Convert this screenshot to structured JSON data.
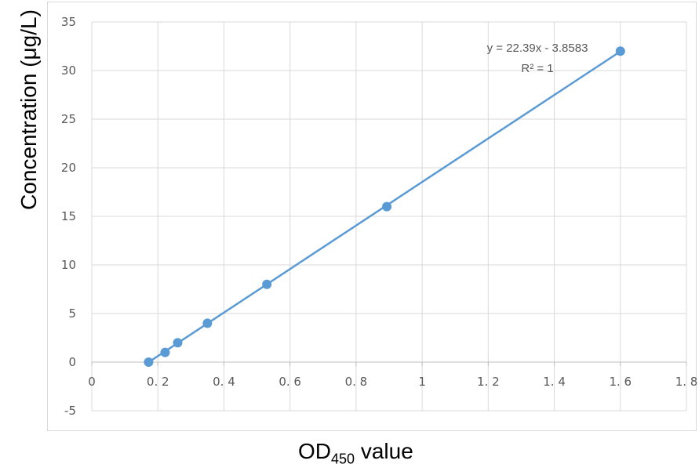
{
  "chart_data": {
    "type": "scatter",
    "xlabel_main": "OD",
    "xlabel_sub": "450",
    "xlabel_suffix": " value",
    "ylabel": "Concentration (μg/L)",
    "xlim": [
      0,
      1.8
    ],
    "ylim": [
      -5,
      35
    ],
    "x_ticks": [
      0,
      0.2,
      0.4,
      0.6,
      0.8,
      1,
      1.2,
      1.4,
      1.6,
      1.8
    ],
    "x_tick_labels": [
      "0",
      "0. 2",
      "0. 4",
      "0. 6",
      "0. 8",
      "1",
      "1. 2",
      "1. 4",
      "1. 6",
      "1. 8"
    ],
    "y_ticks": [
      -5,
      0,
      5,
      10,
      15,
      20,
      25,
      30,
      35
    ],
    "y_tick_labels": [
      "-5",
      "0",
      "5",
      "10",
      "15",
      "20",
      "25",
      "30",
      "35"
    ],
    "grid": true,
    "series": [
      {
        "x": [
          0.172,
          0.222,
          0.26,
          0.35,
          0.53,
          0.893,
          1.6
        ],
        "y": [
          0,
          1,
          2,
          4,
          8,
          16,
          32
        ],
        "color": "#5b9bd5"
      }
    ],
    "trendline": {
      "x_start": 0.172,
      "x_end": 1.6,
      "slope": 22.39,
      "intercept": -3.8583,
      "color": "#5b9bd5"
    },
    "annotations": {
      "equation": "y = 22.39x - 3.8583",
      "r_squared": "R² = 1"
    }
  }
}
